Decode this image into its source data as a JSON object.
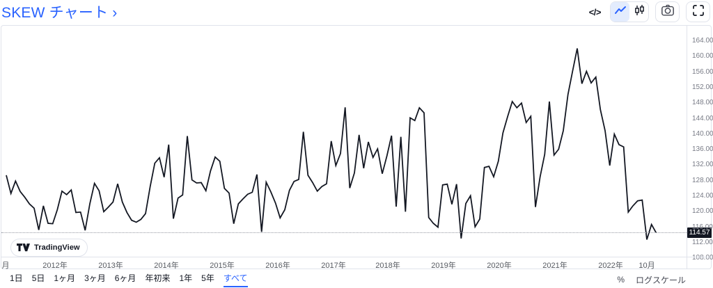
{
  "header": {
    "title": "SKEW チャート ›",
    "controls": {
      "code_label": "</>",
      "line_style_icon": "line-chart",
      "candle_style_icon": "candlestick-chart",
      "camera_icon": "camera",
      "fullscreen_icon": "fullscreen"
    }
  },
  "colors": {
    "accent": "#2962FF",
    "line": "#131722",
    "badge_bg": "#131722",
    "border": "#E0E3EB",
    "axis_text": "#787B86"
  },
  "chart": {
    "price_badge": "114.57",
    "logo_text": "TradingView",
    "y_axis_labels": [
      "164.00",
      "160.00",
      "156.00",
      "152.00",
      "148.00",
      "144.00",
      "140.00",
      "136.00",
      "132.00",
      "128.00",
      "124.00",
      "120.00",
      "116.00",
      "112.00",
      "108.00"
    ],
    "time_axis_labels": [
      "月",
      "2012年",
      "2013年",
      "2014年",
      "2015年",
      "2016年",
      "2017年",
      "2018年",
      "2019年",
      "2020年",
      "2021年",
      "2022年",
      "10月"
    ]
  },
  "toolbar": {
    "ranges": [
      "1日",
      "5日",
      "1ヶ月",
      "3ヶ月",
      "6ヶ月",
      "年初来",
      "1年",
      "5年",
      "すべて"
    ],
    "selected_range": "すべて",
    "percent_label": "%",
    "log_scale_label": "ログスケール"
  },
  "chart_data": {
    "type": "line",
    "title": "SKEW チャート",
    "x_start": "2011-02",
    "x_interval": "1 month",
    "x_tick_labels": [
      "2012年",
      "2013年",
      "2014年",
      "2015年",
      "2016年",
      "2017年",
      "2018年",
      "2019年",
      "2020年",
      "2021年",
      "2022年",
      "10月"
    ],
    "ylim": [
      107,
      168
    ],
    "yticks": [
      108,
      112,
      116,
      120,
      124,
      128,
      132,
      136,
      140,
      144,
      148,
      152,
      156,
      160,
      164
    ],
    "grid": false,
    "legend": false,
    "last_value": 114.57,
    "values": [
      129.4,
      124.7,
      127.9,
      125.2,
      123.7,
      122.0,
      120.9,
      115.3,
      121.5,
      117.0,
      116.9,
      120.5,
      125.3,
      124.4,
      125.6,
      119.8,
      119.9,
      115.2,
      122.0,
      127.3,
      125.4,
      120.0,
      121.2,
      122.5,
      127.2,
      122.5,
      119.8,
      117.8,
      117.3,
      118.0,
      119.5,
      126.5,
      132.5,
      133.9,
      128.9,
      137.3,
      118.2,
      123.5,
      124.3,
      139.5,
      128.2,
      127.4,
      127.5,
      125.4,
      130.5,
      134.1,
      133.0,
      126.0,
      124.8,
      116.9,
      122.0,
      123.3,
      124.5,
      125.0,
      129.6,
      114.8,
      127.6,
      125.1,
      122.2,
      118.4,
      120.5,
      125.5,
      127.8,
      128.3,
      140.6,
      129.4,
      127.5,
      125.3,
      126.5,
      127.2,
      138.2,
      131.9,
      135.0,
      146.9,
      126.1,
      130.0,
      139.8,
      131.2,
      138.0,
      134.0,
      136.2,
      129.8,
      134.4,
      139.6,
      121.3,
      139.3,
      120.0,
      144.2,
      143.5,
      146.8,
      145.5,
      118.5,
      117.0,
      116.0,
      126.9,
      127.1,
      121.9,
      127.1,
      113.1,
      122.1,
      124.1,
      116.1,
      118.1,
      131.4,
      131.7,
      129.0,
      133.0,
      140.3,
      144.5,
      148.4,
      146.8,
      148.0,
      143.0,
      144.6,
      121.2,
      129.0,
      134.8,
      148.4,
      134.6,
      136.1,
      140.9,
      150.2,
      156.2,
      162.1,
      153.0,
      156.2,
      153.2,
      154.7,
      146.3,
      140.9,
      131.9,
      140.0,
      137.3,
      136.7,
      119.9,
      121.5,
      122.8,
      123.0,
      112.8,
      116.7,
      114.57
    ]
  }
}
